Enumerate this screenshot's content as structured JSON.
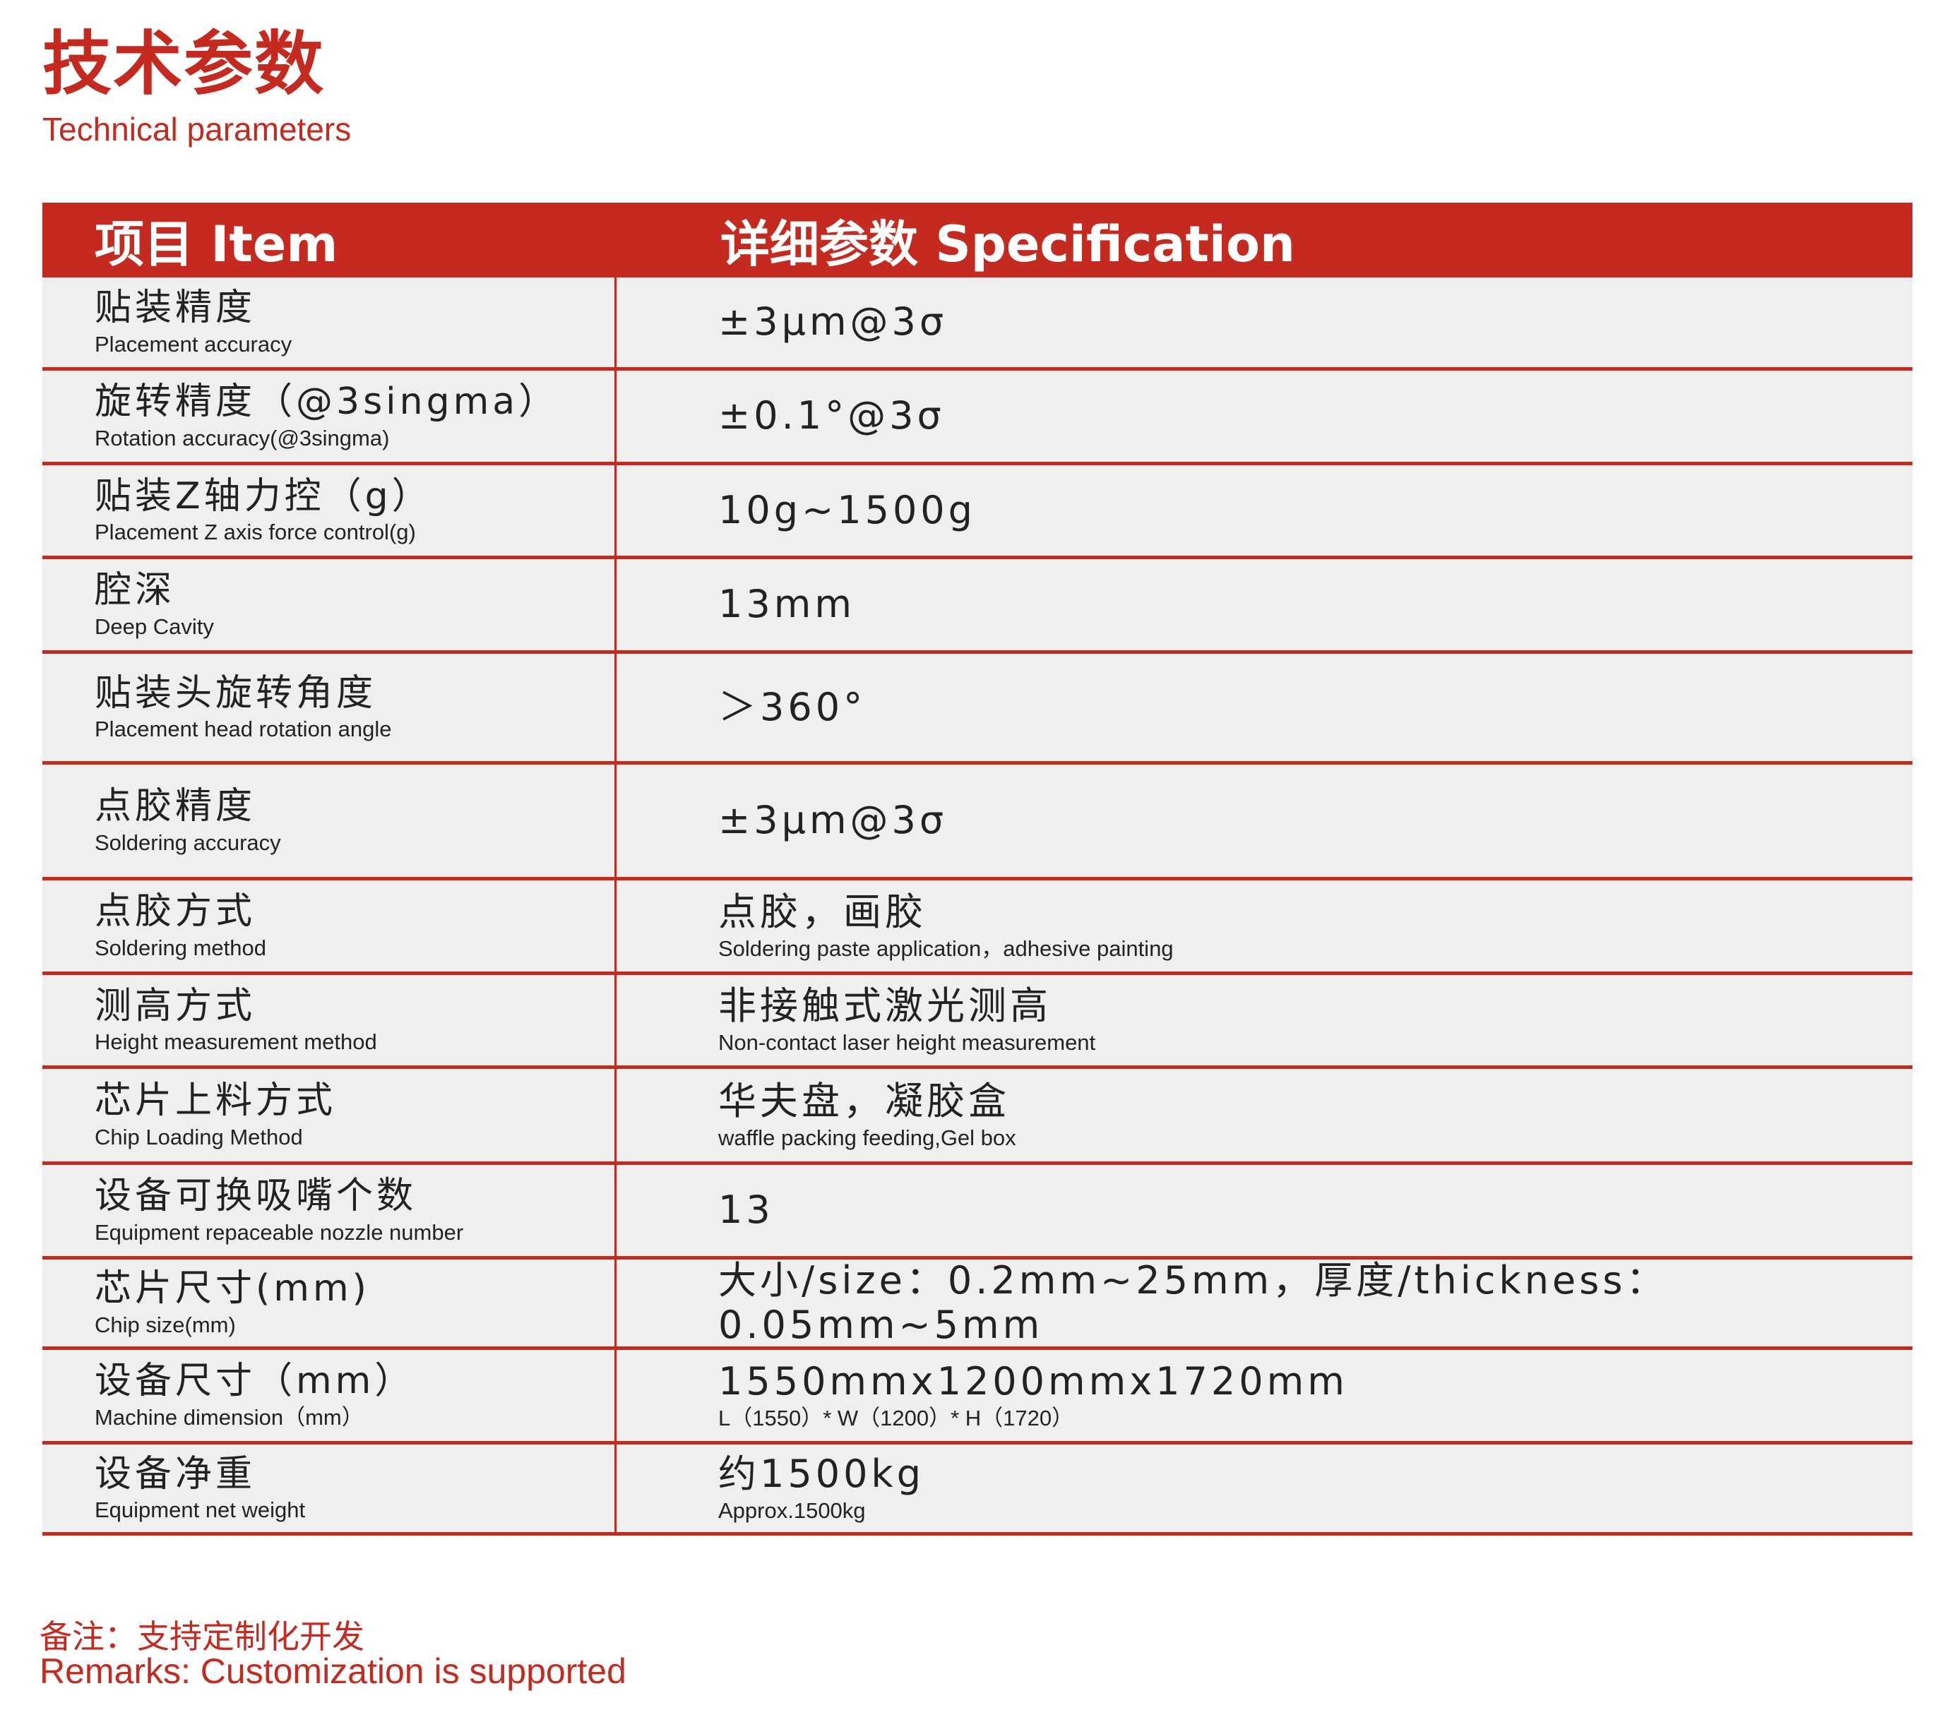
{
  "title": {
    "cn": "技术参数",
    "en": "Technical parameters"
  },
  "colors": {
    "accent": "#c42a20",
    "row_bg": "#efefef"
  },
  "table": {
    "headers": [
      "项目 Item",
      "详细参数 Specification"
    ],
    "rows": [
      {
        "item_cn": "贴装精度",
        "item_en": "Placement accuracy",
        "value": "±3μm@3σ",
        "value_en": ""
      },
      {
        "item_cn": "旋转精度（@3singma）",
        "item_en": "Rotation accuracy(@3singma)",
        "value": "±0.1°@3σ",
        "value_en": ""
      },
      {
        "item_cn": "贴装Z轴力控（g）",
        "item_en": "Placement Z axis force control(g)",
        "value": "10g~1500g",
        "value_en": ""
      },
      {
        "item_cn": "腔深",
        "item_en": "Deep Cavity",
        "value": "13mm",
        "value_en": ""
      },
      {
        "item_cn": "贴装头旋转角度",
        "item_en": "Placement head rotation angle",
        "value": "＞360°",
        "value_en": ""
      },
      {
        "item_cn": "点胶精度",
        "item_en": "Soldering accuracy",
        "value": "±3μm@3σ",
        "value_en": ""
      },
      {
        "item_cn": "点胶方式",
        "item_en": "Soldering method",
        "value": "点胶，画胶",
        "value_en": "Soldering paste application，adhesive painting"
      },
      {
        "item_cn": "测高方式",
        "item_en": "Height measurement method",
        "value": "非接触式激光测高",
        "value_en": "Non-contact laser height measurement"
      },
      {
        "item_cn": "芯片上料方式",
        "item_en": "Chip Loading Method",
        "value": "华夫盘，凝胶盒",
        "value_en": "waffle packing feeding,Gel box"
      },
      {
        "item_cn": "设备可换吸嘴个数",
        "item_en": "Equipment repaceable nozzle number",
        "value": "13",
        "value_en": ""
      },
      {
        "item_cn": "芯片尺寸(mm)",
        "item_en": "Chip size(mm)",
        "value": "大小/size：0.2mm~25mm，厚度/thickness：0.05mm~5mm",
        "value_en": ""
      },
      {
        "item_cn": "设备尺寸（mm）",
        "item_en": "Machine dimension（mm）",
        "value": "1550mmx1200mmx1720mm",
        "value_en": "L（1550）* W（1200）* H（1720）"
      },
      {
        "item_cn": "设备净重",
        "item_en": "Equipment net weight",
        "value": "约1500kg",
        "value_en": "Approx.1500kg"
      }
    ]
  },
  "remarks": {
    "cn": "备注：支持定制化开发",
    "en": "Remarks: Customization is supported"
  }
}
